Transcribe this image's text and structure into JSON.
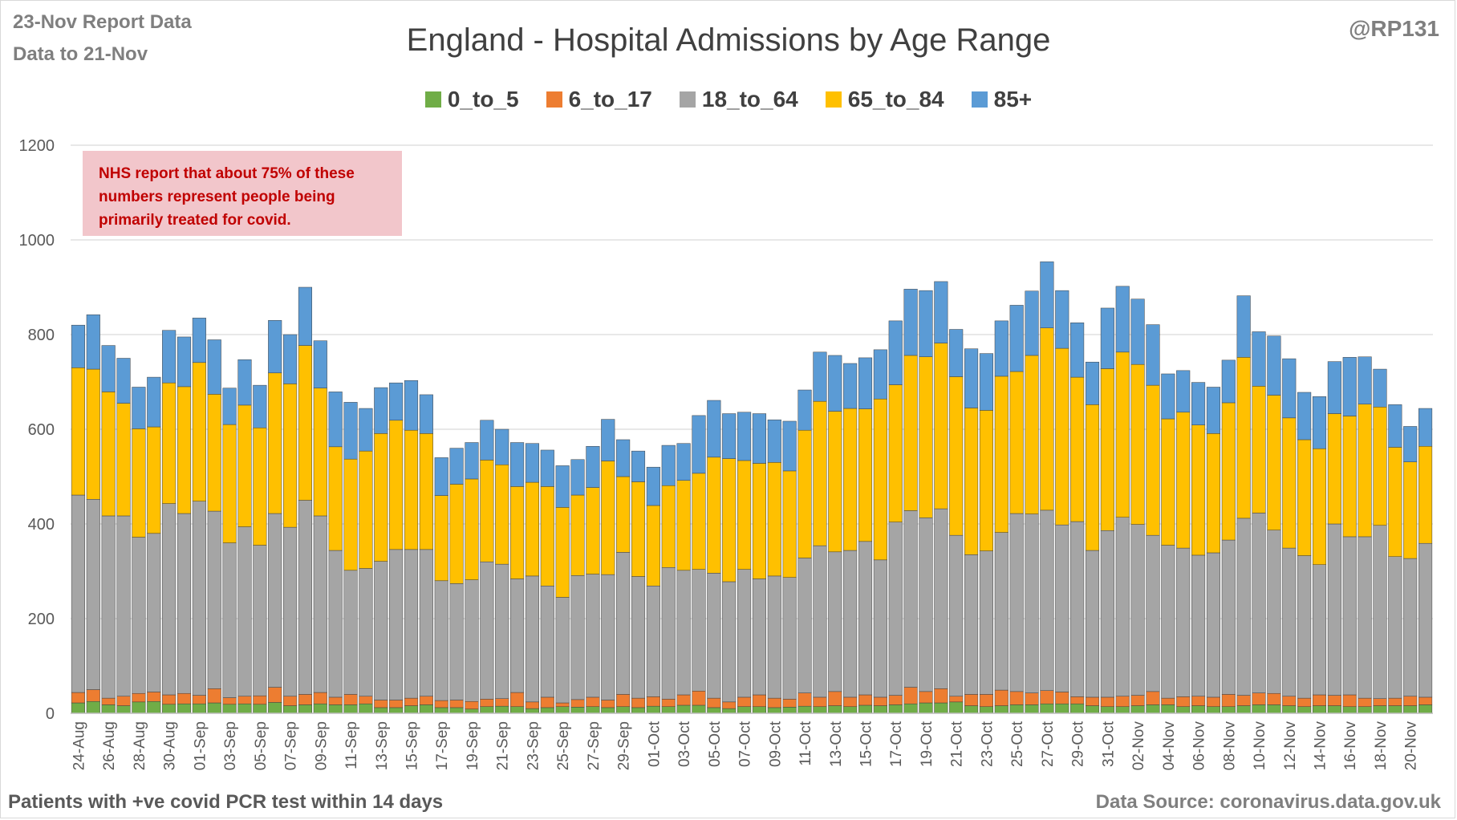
{
  "header": {
    "report_line": "23-Nov Report Data",
    "data_line": "Data to 21-Nov",
    "title": "England - Hospital Admissions by Age Range",
    "handle": "@RP131"
  },
  "note": {
    "lines": [
      "NHS report that about 75% of these",
      "numbers represent people being",
      "primarily treated for covid."
    ]
  },
  "footer": {
    "left": "Patients with  +ve covid PCR test within 14 days",
    "right": "Data Source: coronavirus.data.gov.uk"
  },
  "colors": {
    "grid": "#d9d9d9",
    "axis_text": "#595959"
  },
  "chart_data": {
    "type": "bar",
    "stacked": true,
    "ylim": [
      0,
      1200
    ],
    "yticks": [
      0,
      200,
      400,
      600,
      800,
      1000,
      1200
    ],
    "grid": true,
    "legend_position": "top",
    "categories": [
      "24-Aug",
      "25-Aug",
      "26-Aug",
      "27-Aug",
      "28-Aug",
      "29-Aug",
      "30-Aug",
      "31-Aug",
      "01-Sep",
      "02-Sep",
      "03-Sep",
      "04-Sep",
      "05-Sep",
      "06-Sep",
      "07-Sep",
      "08-Sep",
      "09-Sep",
      "10-Sep",
      "11-Sep",
      "12-Sep",
      "13-Sep",
      "14-Sep",
      "15-Sep",
      "16-Sep",
      "17-Sep",
      "18-Sep",
      "19-Sep",
      "20-Sep",
      "21-Sep",
      "22-Sep",
      "23-Sep",
      "24-Sep",
      "25-Sep",
      "26-Sep",
      "27-Sep",
      "28-Sep",
      "29-Sep",
      "30-Sep",
      "01-Oct",
      "02-Oct",
      "03-Oct",
      "04-Oct",
      "05-Oct",
      "06-Oct",
      "07-Oct",
      "08-Oct",
      "09-Oct",
      "10-Oct",
      "11-Oct",
      "12-Oct",
      "13-Oct",
      "14-Oct",
      "15-Oct",
      "16-Oct",
      "17-Oct",
      "18-Oct",
      "19-Oct",
      "20-Oct",
      "21-Oct",
      "22-Oct",
      "23-Oct",
      "24-Oct",
      "25-Oct",
      "26-Oct",
      "27-Oct",
      "28-Oct",
      "29-Oct",
      "30-Oct",
      "31-Oct",
      "01-Nov",
      "02-Nov",
      "03-Nov",
      "04-Nov",
      "05-Nov",
      "06-Nov",
      "07-Nov",
      "08-Nov",
      "09-Nov",
      "10-Nov",
      "11-Nov",
      "12-Nov",
      "13-Nov",
      "14-Nov",
      "15-Nov",
      "16-Nov",
      "17-Nov",
      "18-Nov",
      "19-Nov",
      "20-Nov",
      "21-Nov"
    ],
    "x_tick_labels_every": 2,
    "series": [
      {
        "name": "0_to_5",
        "color": "#70ad47",
        "values": [
          22,
          25,
          18,
          16,
          24,
          25,
          19,
          20,
          20,
          22,
          19,
          20,
          19,
          23,
          16,
          18,
          20,
          18,
          18,
          20,
          12,
          12,
          16,
          18,
          12,
          12,
          9,
          14,
          15,
          14,
          10,
          12,
          14,
          13,
          14,
          12,
          14,
          12,
          15,
          14,
          17,
          17,
          12,
          10,
          14,
          14,
          12,
          13,
          15,
          14,
          16,
          14,
          17,
          16,
          18,
          20,
          22,
          22,
          24,
          16,
          14,
          16,
          18,
          18,
          20,
          20,
          20,
          16,
          14,
          14,
          16,
          18,
          18,
          14,
          16,
          14,
          14,
          16,
          18,
          18,
          16,
          14,
          16,
          16,
          14,
          14,
          16,
          16,
          16,
          18
        ]
      },
      {
        "name": "6_to_17",
        "color": "#ed7d31",
        "values": [
          22,
          25,
          14,
          20,
          18,
          20,
          20,
          22,
          18,
          30,
          14,
          16,
          18,
          32,
          20,
          22,
          24,
          16,
          22,
          16,
          16,
          16,
          16,
          18,
          15,
          16,
          16,
          16,
          16,
          30,
          14,
          22,
          8,
          16,
          20,
          16,
          26,
          20,
          20,
          16,
          22,
          30,
          20,
          14,
          20,
          25,
          20,
          17,
          28,
          20,
          30,
          20,
          22,
          18,
          20,
          35,
          24,
          30,
          12,
          24,
          26,
          33,
          28,
          25,
          28,
          25,
          15,
          18,
          20,
          22,
          22,
          28,
          14,
          21,
          20,
          20,
          26,
          22,
          25,
          24,
          20,
          18,
          23,
          22,
          25,
          18,
          15,
          16,
          20,
          16
        ]
      },
      {
        "name": "18_to_64",
        "color": "#a5a5a5",
        "values": [
          417,
          402,
          385,
          381,
          330,
          335,
          404,
          380,
          410,
          375,
          327,
          358,
          318,
          367,
          357,
          410,
          373,
          310,
          262,
          270,
          293,
          318,
          314,
          310,
          253,
          246,
          257,
          290,
          284,
          240,
          266,
          235,
          223,
          262,
          260,
          265,
          300,
          257,
          234,
          278,
          263,
          257,
          264,
          254,
          270,
          245,
          258,
          257,
          285,
          320,
          295,
          310,
          324,
          290,
          366,
          373,
          367,
          380,
          340,
          295,
          303,
          333,
          376,
          378,
          381,
          353,
          370,
          310,
          352,
          378,
          361,
          330,
          323,
          314,
          298,
          305,
          326,
          374,
          380,
          345,
          313,
          301,
          275,
          362,
          334,
          341,
          366,
          299,
          291,
          325
        ]
      },
      {
        "name": "65_to_84",
        "color": "#ffc000",
        "values": [
          269,
          275,
          262,
          238,
          229,
          225,
          255,
          268,
          293,
          247,
          250,
          257,
          248,
          297,
          303,
          327,
          270,
          219,
          235,
          248,
          270,
          273,
          252,
          245,
          180,
          210,
          213,
          215,
          210,
          195,
          198,
          210,
          190,
          170,
          183,
          240,
          160,
          200,
          170,
          173,
          190,
          203,
          245,
          260,
          230,
          244,
          240,
          225,
          270,
          305,
          297,
          300,
          280,
          340,
          290,
          328,
          340,
          350,
          335,
          310,
          297,
          330,
          300,
          335,
          385,
          373,
          305,
          308,
          342,
          349,
          338,
          317,
          267,
          287,
          275,
          252,
          290,
          340,
          268,
          285,
          275,
          245,
          245,
          233,
          255,
          280,
          250,
          231,
          204,
          205
        ]
      },
      {
        "name": "85+",
        "color": "#5b9bd5",
        "values": [
          90,
          115,
          98,
          95,
          88,
          105,
          111,
          105,
          94,
          115,
          77,
          96,
          90,
          111,
          104,
          123,
          100,
          116,
          120,
          90,
          97,
          79,
          105,
          82,
          80,
          76,
          77,
          84,
          75,
          93,
          82,
          77,
          88,
          75,
          87,
          88,
          78,
          65,
          81,
          85,
          78,
          122,
          120,
          95,
          102,
          105,
          90,
          105,
          85,
          104,
          118,
          95,
          108,
          104,
          135,
          140,
          140,
          130,
          100,
          125,
          120,
          117,
          140,
          136,
          140,
          122,
          115,
          90,
          128,
          139,
          138,
          128,
          95,
          88,
          90,
          98,
          90,
          130,
          115,
          125,
          125,
          100,
          110,
          110,
          124,
          100,
          80,
          90,
          75,
          80
        ]
      }
    ]
  }
}
